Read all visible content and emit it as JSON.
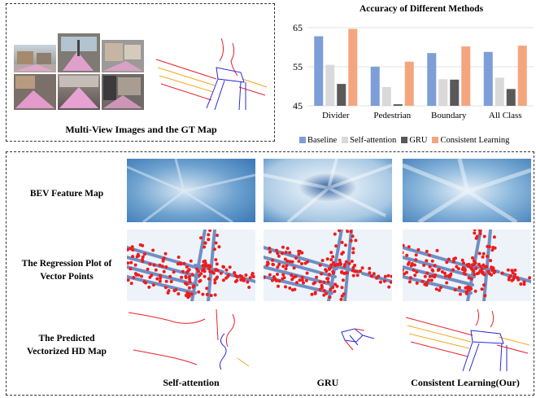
{
  "top_left": {
    "caption": "Multi-View Images and the GT Map"
  },
  "chart_data": {
    "type": "bar",
    "title": "Accuracy of Different Methods",
    "categories": [
      "Divider",
      "Pedestrian",
      "Boundary",
      "All Class"
    ],
    "series": [
      {
        "name": "Baseline",
        "values": [
          62.8,
          55.0,
          58.5,
          58.8
        ]
      },
      {
        "name": "Self-attention",
        "values": [
          55.5,
          49.8,
          51.8,
          52.2
        ]
      },
      {
        "name": "GRU",
        "values": [
          50.6,
          45.4,
          51.7,
          49.3
        ]
      },
      {
        "name": "Consistent Learning",
        "values": [
          64.7,
          56.3,
          60.2,
          60.4
        ]
      }
    ],
    "ylim": [
      45,
      65
    ],
    "yticks": [
      "45",
      "55",
      "65"
    ],
    "colors": [
      "#7d9ed6",
      "#d9d9d9",
      "#595959",
      "#f4a57f"
    ],
    "legend_position": "bottom"
  },
  "bottom": {
    "row_labels": [
      [
        "BEV Feature Map"
      ],
      [
        "The Regression Plot of",
        "Vector Points"
      ],
      [
        "The Predicted",
        "Vectorized  HD Map"
      ]
    ],
    "column_labels": [
      "Self-attention",
      "GRU",
      "Consistent Learning(Our)"
    ]
  },
  "colors": {
    "divider": "#e8202a",
    "pedestrian": "#2a2ad8",
    "boundary": "#f5a623",
    "points": "#ee1c1c",
    "lane": "#6f8fc4"
  }
}
